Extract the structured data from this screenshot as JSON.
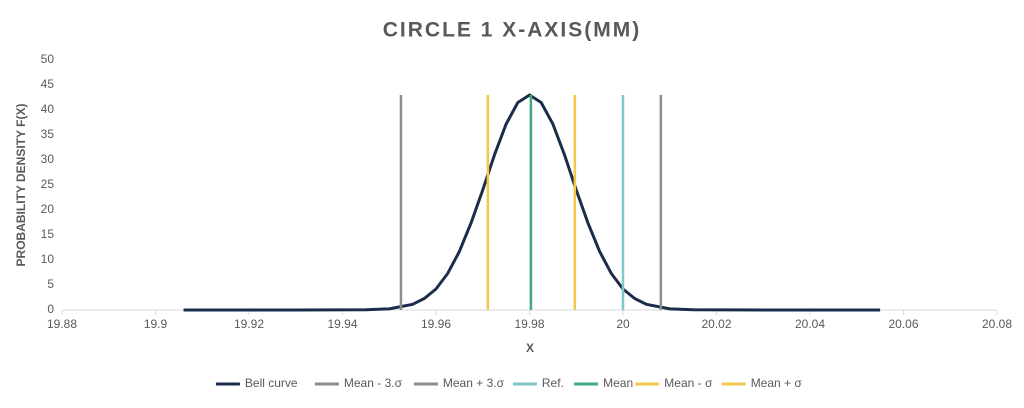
{
  "chart_data": {
    "type": "line",
    "title": "CIRCLE 1 X-AXIS(MM)",
    "x_label": "X",
    "y_label": "PROBABILITY DENSITY F(X)",
    "xlim": [
      19.88,
      20.08
    ],
    "xticks": [
      19.88,
      19.9,
      19.92,
      19.94,
      19.96,
      19.98,
      20,
      20.02,
      20.04,
      20.06,
      20.08
    ],
    "ylim": [
      0,
      50
    ],
    "yticks": [
      0,
      5,
      10,
      15,
      20,
      25,
      30,
      35,
      40,
      45,
      50
    ],
    "legend": "bottom",
    "series": [
      {
        "name": "Bell curve",
        "color": "#1b2d4a",
        "x": [
          19.906,
          19.93,
          19.945,
          19.95,
          19.955,
          19.9575,
          19.96,
          19.9625,
          19.965,
          19.9675,
          19.97,
          19.9725,
          19.975,
          19.9775,
          19.98,
          19.9825,
          19.985,
          19.9875,
          19.99,
          19.9925,
          19.995,
          19.9975,
          20.0,
          20.0025,
          20.005,
          20.01,
          20.015,
          20.03,
          20.055
        ],
        "values": [
          0,
          0,
          0.04,
          0.23,
          1.14,
          2.3,
          4.2,
          7.3,
          11.7,
          17.4,
          24.0,
          31.0,
          37.2,
          41.5,
          43,
          41.5,
          37.2,
          31.0,
          24.0,
          17.4,
          11.7,
          7.3,
          4.2,
          2.3,
          1.14,
          0.23,
          0.04,
          0,
          0
        ]
      },
      {
        "name": "Mean - 3.σ",
        "color": "#8c8c8c",
        "x": [
          19.9525,
          19.9525
        ],
        "values": [
          0,
          43
        ]
      },
      {
        "name": "Mean + 3.σ",
        "color": "#8c8c8c",
        "x": [
          20.0081,
          20.0081
        ],
        "values": [
          0,
          43
        ]
      },
      {
        "name": "Ref.",
        "color": "#7ec8c8",
        "x": [
          20,
          20
        ],
        "values": [
          0,
          43
        ]
      },
      {
        "name": "Mean",
        "color": "#3fa882",
        "x": [
          19.9803,
          19.9803
        ],
        "values": [
          0,
          43
        ]
      },
      {
        "name": "Mean - σ",
        "color": "#f2c84b",
        "x": [
          19.9711,
          19.9711
        ],
        "values": [
          0,
          43
        ]
      },
      {
        "name": "Mean + σ",
        "color": "#f2c84b",
        "x": [
          19.9897,
          19.9897
        ],
        "values": [
          0,
          43
        ]
      }
    ]
  }
}
